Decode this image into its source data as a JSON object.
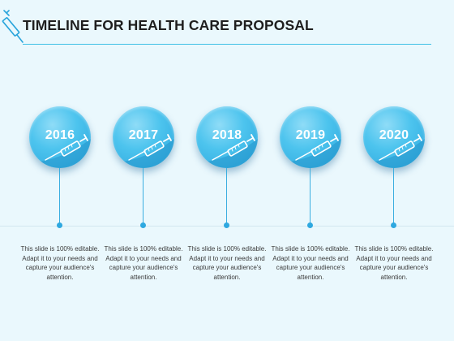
{
  "title": "TIMELINE FOR HEALTH CARE PROPOSAL",
  "colors": {
    "accent": "#3fc0e6",
    "circle": "#4dc4ee",
    "dot": "#2ea8e0",
    "background": "#eaf8fd"
  },
  "icons": {
    "title": "syringe-icon",
    "milestone": "syringe-icon"
  },
  "milestones": [
    {
      "year": "2016",
      "text": "This slide is 100% editable. Adapt it to your needs and capture your audience's attention."
    },
    {
      "year": "2017",
      "text": "This slide is 100% editable. Adapt it to your needs and capture your audience's attention."
    },
    {
      "year": "2018",
      "text": "This slide is 100% editable. Adapt it to your needs and capture your audience's attention."
    },
    {
      "year": "2019",
      "text": "This slide is 100% editable. Adapt it to your needs and capture your audience's attention."
    },
    {
      "year": "2020",
      "text": "This slide is 100% editable. Adapt it to your needs and capture your audience's attention."
    }
  ]
}
